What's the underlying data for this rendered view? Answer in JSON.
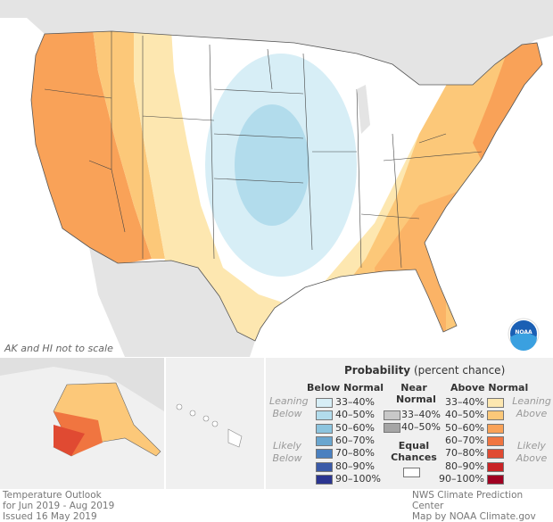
{
  "map": {
    "note": "AK and HI not to scale",
    "logo": "NOAA"
  },
  "legend": {
    "title": "Probability",
    "title_sub": "(percent chance)",
    "below": {
      "heading": "Below Normal",
      "leaning": [
        "Leaning",
        "Below"
      ],
      "likely": [
        "Likely",
        "Below"
      ],
      "items": [
        {
          "label": "33–40%",
          "color": "#d7eef6"
        },
        {
          "label": "40–50%",
          "color": "#b2dcec"
        },
        {
          "label": "50–60%",
          "color": "#8cc4de"
        },
        {
          "label": "60–70%",
          "color": "#6aa6cf"
        },
        {
          "label": "70–80%",
          "color": "#4a80c0"
        },
        {
          "label": "80–90%",
          "color": "#3a5aa8"
        },
        {
          "label": "90–100%",
          "color": "#2b3590"
        }
      ]
    },
    "near": {
      "heading": [
        "Near",
        "Normal"
      ],
      "items": [
        {
          "label": "33–40%",
          "color": "#c8c8c8"
        },
        {
          "label": "40–50%",
          "color": "#a5a5a5"
        }
      ]
    },
    "equal": {
      "heading": [
        "Equal",
        "Chances"
      ],
      "color": "#ffffff"
    },
    "above": {
      "heading": "Above Normal",
      "leaning": [
        "Leaning",
        "Above"
      ],
      "likely": [
        "Likely",
        "Above"
      ],
      "items": [
        {
          "label": "33–40%",
          "color": "#fde7b0"
        },
        {
          "label": "40–50%",
          "color": "#fcc879"
        },
        {
          "label": "50–60%",
          "color": "#f9a258"
        },
        {
          "label": "60–70%",
          "color": "#f07540"
        },
        {
          "label": "70–80%",
          "color": "#e04a32"
        },
        {
          "label": "80–90%",
          "color": "#c92326"
        },
        {
          "label": "90–100%",
          "color": "#a00022"
        }
      ]
    }
  },
  "footer": {
    "left": [
      "Temperature Outlook",
      "for Jun 2019 - Aug 2019",
      "Issued 16 May 2019"
    ],
    "right": [
      "NWS Climate Prediction Center",
      "Map by NOAA Climate.gov"
    ]
  }
}
